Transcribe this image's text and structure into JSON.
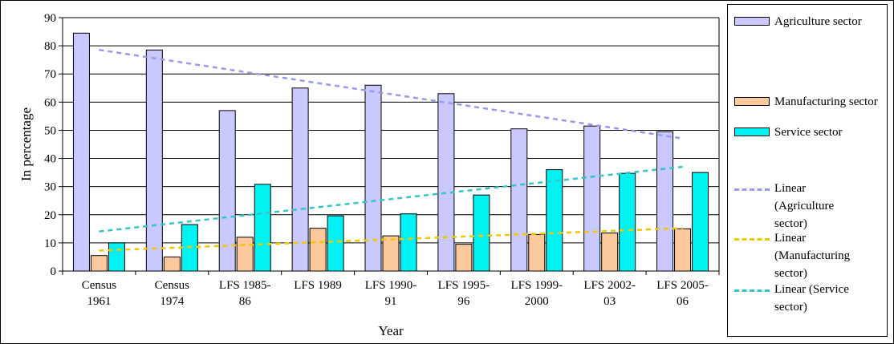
{
  "chart_data": {
    "type": "bar",
    "title": "",
    "xlabel": "Year",
    "ylabel": "In percentage",
    "ylim": [
      0,
      90
    ],
    "yticks": [
      0,
      10,
      20,
      30,
      40,
      50,
      60,
      70,
      80,
      90
    ],
    "grid": true,
    "legend_position": "right",
    "categories": [
      [
        "Census",
        "1961"
      ],
      [
        "Census",
        "1974"
      ],
      [
        "LFS 1985-",
        "86"
      ],
      [
        "LFS 1989"
      ],
      [
        "LFS 1990-",
        "91"
      ],
      [
        "LFS 1995-",
        "96"
      ],
      [
        "LFS 1999-",
        "2000"
      ],
      [
        "LFS 2002-",
        "03"
      ],
      [
        "LFS 2005-",
        "06"
      ]
    ],
    "series": [
      {
        "name": "Agriculture sector",
        "color": "#c9c9ff",
        "values": [
          84.5,
          78.5,
          57.0,
          65.0,
          66.0,
          63.0,
          50.5,
          51.5,
          49.5
        ]
      },
      {
        "name": "Manufacturing sector",
        "color": "#fbc99b",
        "values": [
          5.5,
          5.0,
          12.0,
          15.2,
          12.5,
          9.5,
          13.0,
          13.5,
          15.0
        ]
      },
      {
        "name": "Service sector",
        "color": "#00f2f2",
        "values": [
          10.0,
          16.5,
          30.8,
          19.6,
          20.3,
          27.0,
          36.0,
          34.7,
          35.0
        ]
      }
    ],
    "trendlines": [
      {
        "name": "Linear\n(Agriculture\nsector)",
        "color": "#9999f0",
        "series": "Agriculture sector"
      },
      {
        "name": "Linear\n(Manufacturing\nsector)",
        "color": "#f0c800",
        "series": "Manufacturing sector"
      },
      {
        "name": "Linear (Service\nsector)",
        "color": "#33c6c6",
        "series": "Service sector"
      }
    ]
  }
}
